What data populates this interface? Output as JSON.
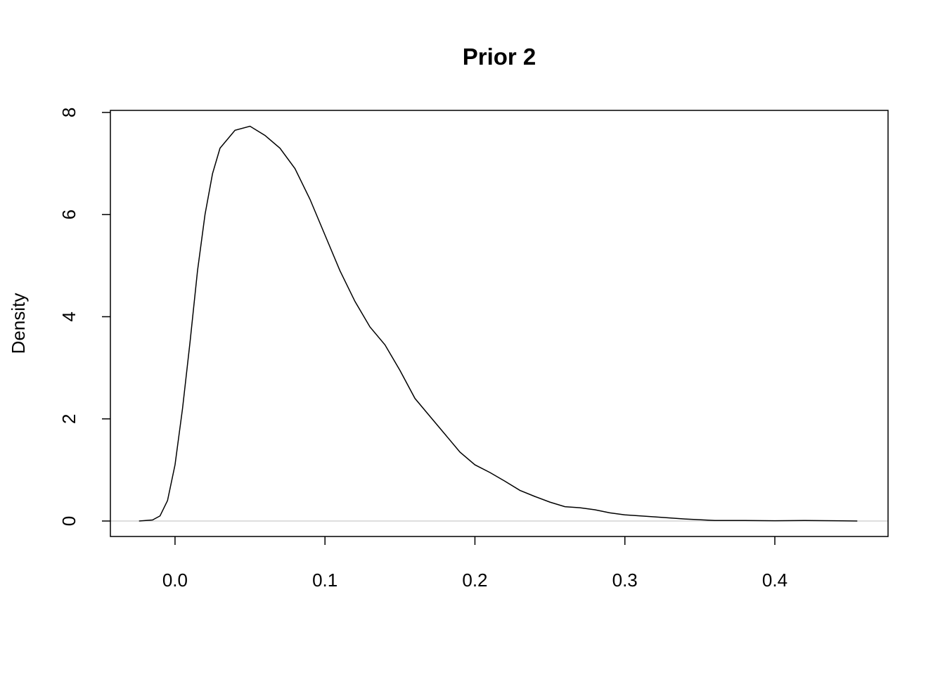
{
  "chart_data": {
    "type": "line",
    "title": "Prior 2",
    "y_label": "Density",
    "x": [
      -0.024,
      -0.015,
      -0.01,
      -0.005,
      0.0,
      0.005,
      0.01,
      0.015,
      0.02,
      0.025,
      0.03,
      0.04,
      0.05,
      0.06,
      0.07,
      0.08,
      0.09,
      0.1,
      0.11,
      0.12,
      0.13,
      0.14,
      0.15,
      0.16,
      0.17,
      0.18,
      0.19,
      0.2,
      0.21,
      0.22,
      0.23,
      0.24,
      0.25,
      0.26,
      0.27,
      0.28,
      0.29,
      0.3,
      0.32,
      0.34,
      0.36,
      0.38,
      0.4,
      0.42,
      0.44,
      0.455
    ],
    "values": [
      0,
      0.02,
      0.1,
      0.4,
      1.1,
      2.2,
      3.5,
      4.9,
      6.0,
      6.8,
      7.3,
      7.65,
      7.73,
      7.55,
      7.3,
      6.9,
      6.3,
      5.6,
      4.9,
      4.3,
      3.8,
      3.45,
      2.95,
      2.4,
      2.05,
      1.7,
      1.35,
      1.1,
      0.95,
      0.78,
      0.6,
      0.48,
      0.37,
      0.28,
      0.26,
      0.22,
      0.16,
      0.12,
      0.08,
      0.04,
      0.01,
      0.01,
      0.005,
      0.01,
      0.005,
      0
    ],
    "color": "#000000",
    "xlim": [
      -0.0431,
      0.4755
    ],
    "ylim": [
      -0.303,
      8.04
    ],
    "xticks": [
      {
        "value": 0,
        "label": "0.0"
      },
      0.1,
      0.2,
      0.3,
      0.4
    ],
    "yticks": [
      0,
      2,
      4,
      6,
      8
    ],
    "zero_line": true,
    "zero_line_color": "#bebebe"
  }
}
